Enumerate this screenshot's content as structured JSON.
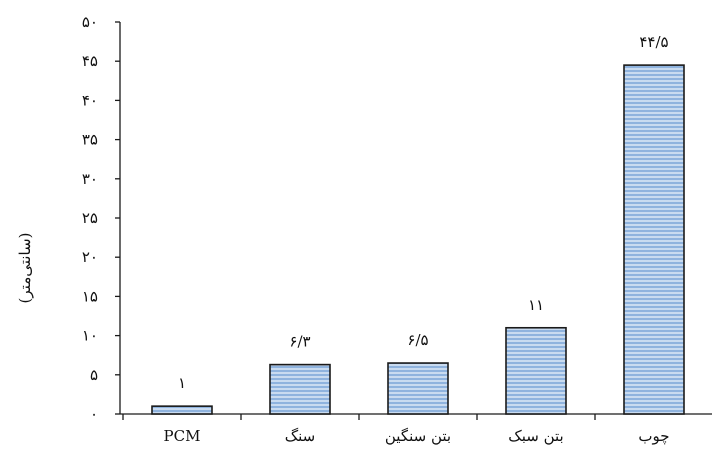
{
  "chart_data": {
    "type": "bar",
    "categories": [
      "PCM",
      "سنگ",
      "بتن سنگین",
      "بتن سبک",
      "چوب"
    ],
    "values": [
      1,
      6.3,
      6.5,
      11,
      44.5
    ],
    "data_labels": [
      "۱",
      "۶/۳",
      "۶/۵",
      "۱۱",
      "۴۴/۵"
    ],
    "ylabel": "(سانتی‌متر)",
    "ylim": [
      0,
      50
    ],
    "yticks": [
      0,
      5,
      10,
      15,
      20,
      25,
      30,
      35,
      40,
      45,
      50
    ],
    "ytick_labels": [
      "۰",
      "۵",
      "۱۰",
      "۱۵",
      "۲۰",
      "۲۵",
      "۳۰",
      "۳۵",
      "۴۰",
      "۴۵",
      "۵۰"
    ],
    "grid": false,
    "colors": {
      "bar_fill": "#8fb3de",
      "bar_stripe": "#c9dbf0",
      "bar_stroke": "#1a1a1a",
      "axis": "#1a1a1a"
    }
  }
}
